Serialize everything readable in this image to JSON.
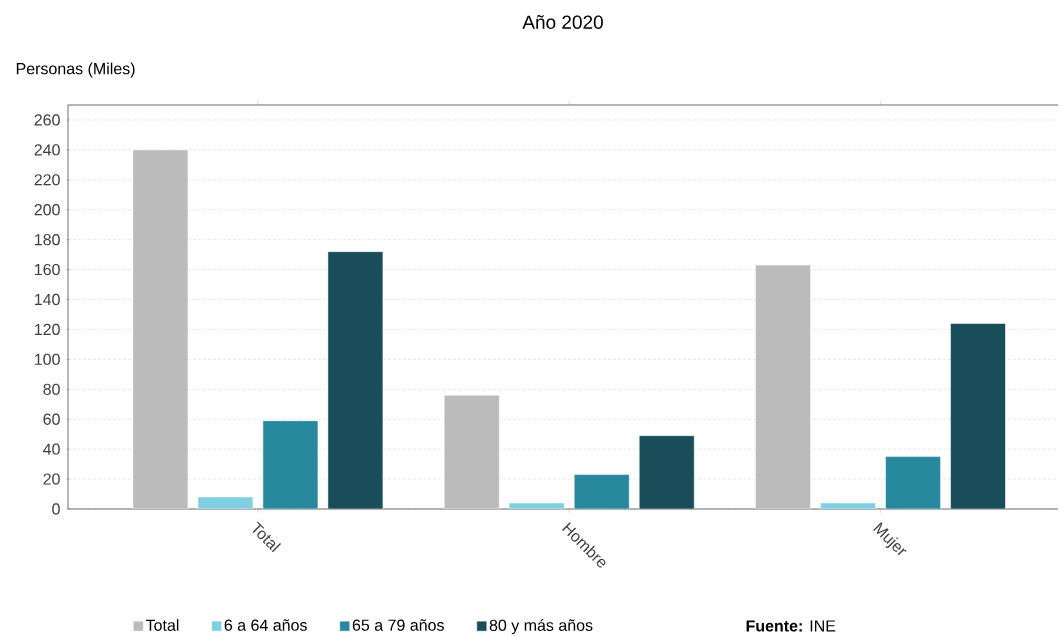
{
  "chart_data": {
    "type": "bar",
    "title": "Año 2020",
    "ylabel": "Personas (Miles)",
    "categories": [
      "Total",
      "Hombre",
      "Mujer"
    ],
    "series": [
      {
        "name": "Total",
        "color": "#bbbbbb",
        "values": [
          240,
          76,
          163
        ]
      },
      {
        "name": "6 a 64 años",
        "color": "#7fcfe0",
        "values": [
          8,
          4,
          4
        ]
      },
      {
        "name": "65 a 79 años",
        "color": "#28889e",
        "values": [
          59,
          23,
          35
        ]
      },
      {
        "name": "80 y más años",
        "color": "#1a4d5a",
        "values": [
          172,
          49,
          124
        ]
      }
    ],
    "ylim": [
      0,
      270
    ],
    "yticks": [
      0,
      20,
      40,
      60,
      80,
      100,
      120,
      140,
      160,
      180,
      200,
      220,
      240,
      260
    ],
    "grid": "y",
    "legend": "bottom",
    "annotations": [
      "**Fuente:** INE"
    ]
  }
}
